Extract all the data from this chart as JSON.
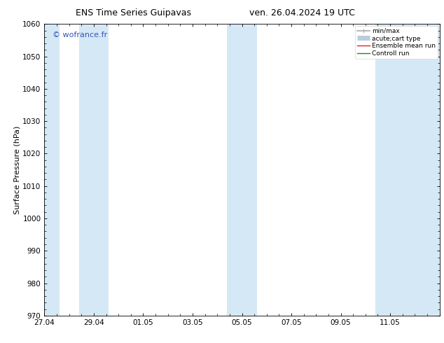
{
  "title": "ENS Time Series Guipavas",
  "title2": "ven. 26.04.2024 19 UTC",
  "ylabel": "Surface Pressure (hPa)",
  "ylim": [
    970,
    1060
  ],
  "yticks": [
    970,
    980,
    990,
    1000,
    1010,
    1020,
    1030,
    1040,
    1050,
    1060
  ],
  "xtick_labels": [
    "27.04",
    "29.04",
    "01.05",
    "03.05",
    "05.05",
    "07.05",
    "09.05",
    "11.05"
  ],
  "xlim": [
    0,
    16.0
  ],
  "x_positions": [
    0.0,
    2.0,
    4.0,
    6.0,
    8.0,
    10.0,
    12.0,
    14.0
  ],
  "background_color": "#ffffff",
  "plot_bg_color": "#ffffff",
  "shaded_bands": [
    {
      "x_start": 0.0,
      "x_end": 0.6
    },
    {
      "x_start": 1.4,
      "x_end": 2.6
    },
    {
      "x_start": 7.4,
      "x_end": 8.6
    },
    {
      "x_start": 13.4,
      "x_end": 16.0
    }
  ],
  "band_color": "#d5e8f5",
  "watermark": "© wofrance.fr",
  "watermark_color": "#3355bb",
  "legend_items": [
    {
      "label": "min/max",
      "color": "#aaaaaa",
      "lw": 1.2,
      "style": "errbar"
    },
    {
      "label": "acute;cart type",
      "color": "#bbccdd",
      "lw": 5,
      "style": "thick"
    },
    {
      "label": "Ensemble mean run",
      "color": "#dd2222",
      "lw": 1.0,
      "style": "line"
    },
    {
      "label": "Controll run",
      "color": "#228822",
      "lw": 1.0,
      "style": "line"
    }
  ],
  "title_fontsize": 9,
  "ylabel_fontsize": 8,
  "tick_fontsize": 7.5,
  "watermark_fontsize": 8,
  "legend_fontsize": 6.5
}
